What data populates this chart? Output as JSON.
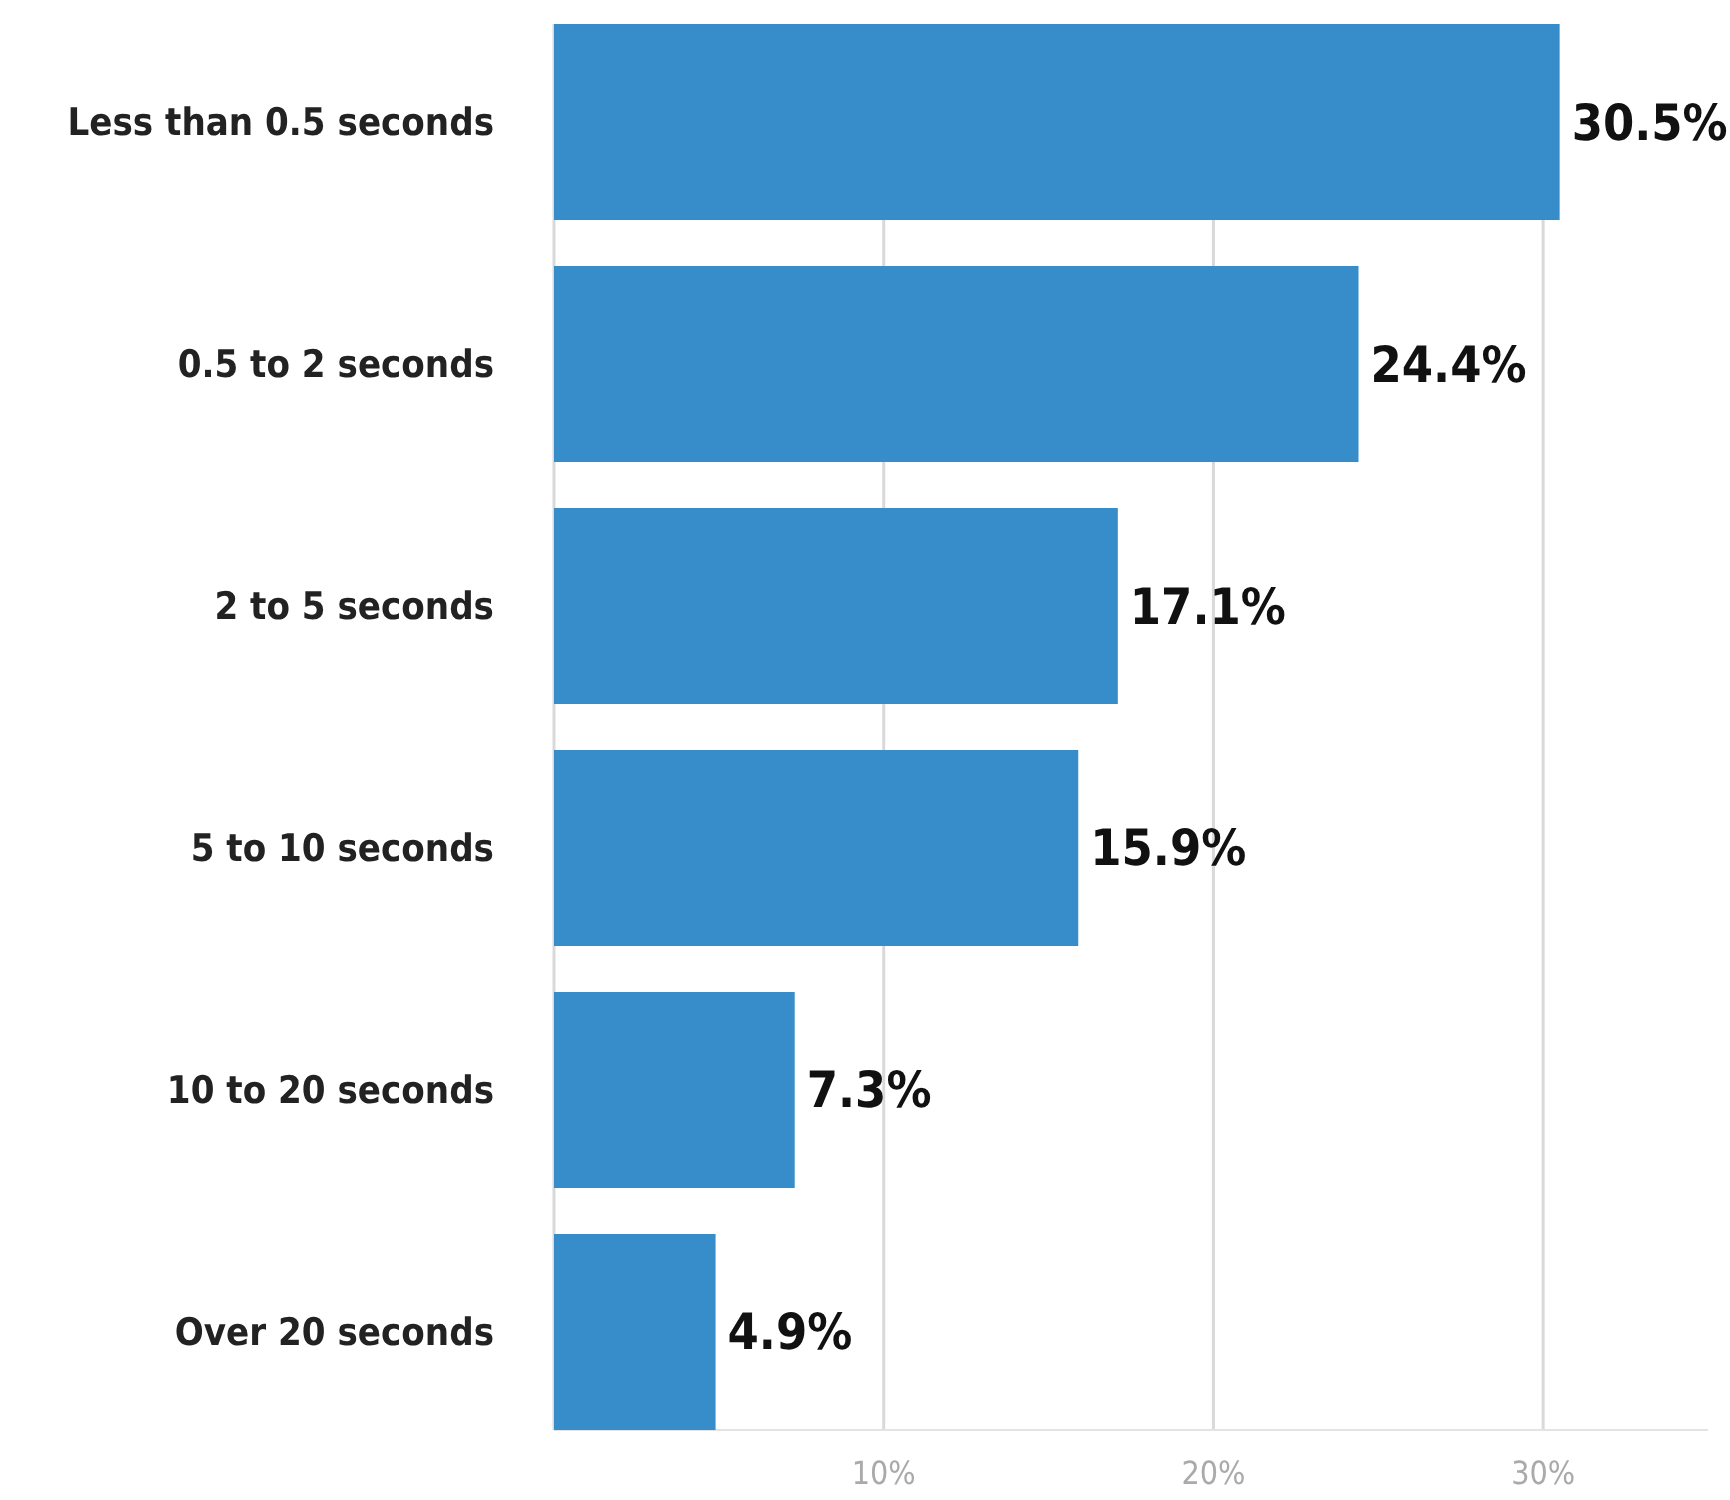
{
  "chart_data": {
    "type": "bar",
    "orientation": "horizontal",
    "categories": [
      "Less than 0.5 seconds",
      "0.5 to 2 seconds",
      "2 to 5 seconds",
      "5 to 10 seconds",
      "10 to 20 seconds",
      "Over 20 seconds"
    ],
    "values": [
      30.5,
      24.4,
      17.1,
      15.9,
      7.3,
      4.9
    ],
    "value_labels": [
      "30.5%",
      "24.4%",
      "17.1%",
      "15.9%",
      "7.3%",
      "4.9%"
    ],
    "color": "#368dca",
    "xlim": [
      0,
      35
    ],
    "xticks": [
      {
        "value": 10,
        "label": "10%"
      },
      {
        "value": 20,
        "label": "20%"
      },
      {
        "value": 30,
        "label": "30%"
      }
    ],
    "grid": "x"
  }
}
